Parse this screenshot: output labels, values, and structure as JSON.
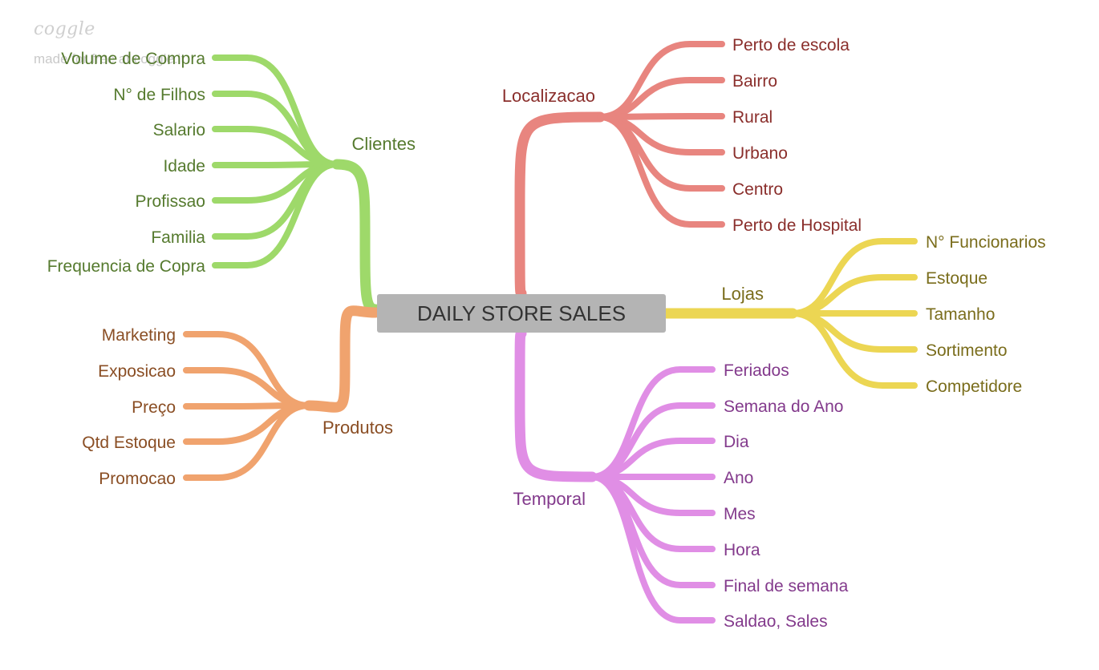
{
  "watermark": {
    "logo": "coggle",
    "subtitle": "made for free at coggle.it"
  },
  "root": {
    "label": "DAILY STORE SALES",
    "fill": "#b4b4b4",
    "text_color": "#333333"
  },
  "branches": [
    {
      "id": "clientes",
      "label": "Clientes",
      "color": "#9ed96a",
      "text_color": "#557a2e",
      "children": [
        "Volume de Compra",
        "N° de Filhos",
        "Salario",
        "Idade",
        "Profissao",
        "Familia",
        "Frequencia de Copra"
      ]
    },
    {
      "id": "produtos",
      "label": "Produtos",
      "color": "#f0a36e",
      "text_color": "#8a4e24",
      "children": [
        "Marketing",
        "Exposicao",
        "Preço",
        "Qtd Estoque",
        "Promocao"
      ]
    },
    {
      "id": "localizacao",
      "label": "Localizacao",
      "color": "#e8857f",
      "text_color": "#8a2e2b",
      "children": [
        "Perto de escola",
        "Bairro",
        "Rural",
        "Urbano",
        "Centro",
        "Perto de Hospital"
      ]
    },
    {
      "id": "lojas",
      "label": "Lojas",
      "color": "#ecd653",
      "text_color": "#7a6d1c",
      "children": [
        "N° Funcionarios",
        "Estoque",
        "Tamanho",
        "Sortimento",
        "Competidore"
      ]
    },
    {
      "id": "temporal",
      "label": "Temporal",
      "color": "#e08ee5",
      "text_color": "#833a8c",
      "children": [
        "Feriados",
        "Semana do Ano",
        "Dia",
        "Ano",
        "Mes",
        "Hora",
        "Final de semana",
        "Saldao, Sales"
      ]
    }
  ]
}
